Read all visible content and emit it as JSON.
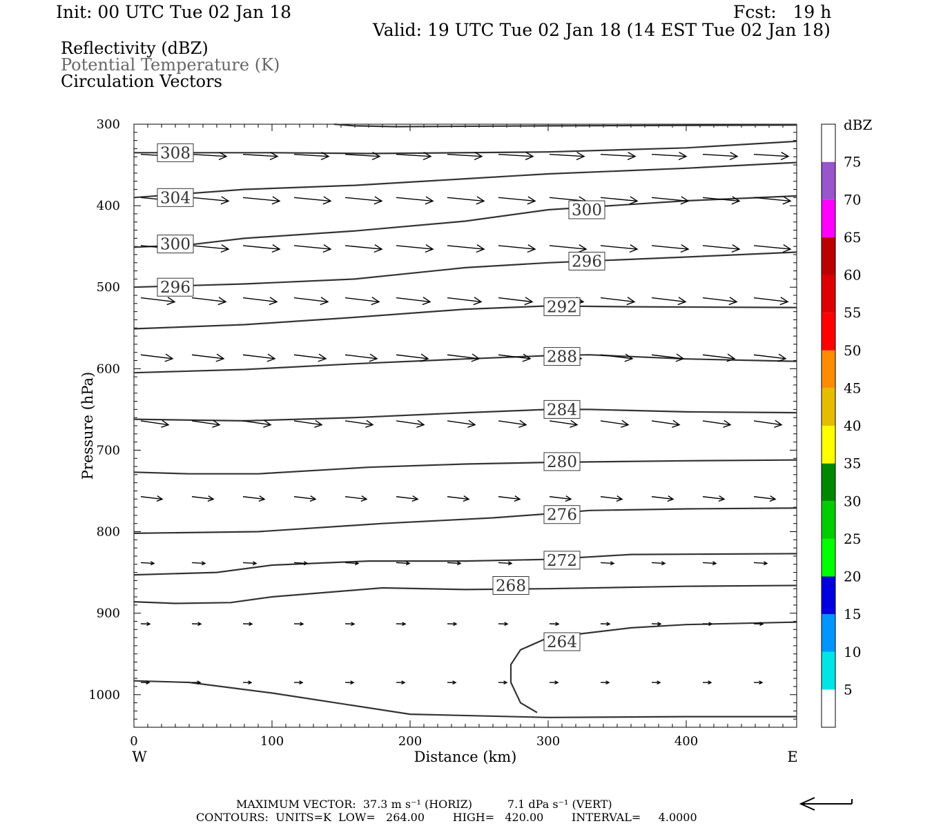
{
  "header": {
    "init": "Init: 00 UTC Tue 02 Jan 18",
    "fcst": "Fcst:   19 h",
    "valid": "Valid: 19 UTC Tue 02 Jan 18 (14 EST Tue 02 Jan 18)"
  },
  "fields": {
    "reflectivity": "Reflectivity (dBZ)",
    "theta": "Potential Temperature (K)",
    "vectors": "Circulation Vectors"
  },
  "footer": {
    "max_vector": "MAXIMUM VECTOR:  37.3 m s⁻¹ (HORIZ)          7.1 dPa s⁻¹ (VERT)",
    "contours": "CONTOURS:  UNITS=K  LOW=   264.00        HIGH=   420.00        INTERVAL=     4.0000"
  },
  "colorbar": {
    "unit": "dBZ",
    "labels": [
      "75",
      "70",
      "65",
      "60",
      "55",
      "50",
      "45",
      "40",
      "35",
      "30",
      "25",
      "20",
      "15",
      "10",
      "5"
    ],
    "colors": [
      "#ffffff",
      "#00e5e5",
      "#0096ff",
      "#0000e0",
      "#00ff00",
      "#00cc00",
      "#008800",
      "#ffff00",
      "#e6bc00",
      "#ff8c00",
      "#ff0000",
      "#dd0000",
      "#bb0000",
      "#ff00ff",
      "#9955cc",
      "#ffffff"
    ]
  },
  "chart_data": {
    "type": "contour-cross-section",
    "xlabel": "Distance (km)",
    "ylabel": "Pressure (hPa)",
    "xlim": [
      0,
      480
    ],
    "ylim": [
      1040,
      300
    ],
    "x_ticks": [
      "0",
      "100",
      "200",
      "300",
      "400"
    ],
    "y_ticks": [
      "300",
      "400",
      "500",
      "600",
      "700",
      "800",
      "900",
      "1000"
    ],
    "x_ticks_values": [
      0,
      100,
      200,
      300,
      400
    ],
    "y_ticks_values": [
      300,
      400,
      500,
      600,
      700,
      800,
      900,
      1000
    ],
    "left_label": "W",
    "right_label": "E",
    "contour_color": "#333333",
    "contours": [
      {
        "label": "308",
        "label_at": [
          18,
          335
        ],
        "points": [
          [
            0,
            335
          ],
          [
            100,
            335
          ],
          [
            170,
            336
          ],
          [
            300,
            334
          ],
          [
            400,
            329
          ],
          [
            480,
            321
          ]
        ]
      },
      {
        "label": "304",
        "label_at": [
          18,
          390
        ],
        "points": [
          [
            0,
            390
          ],
          [
            80,
            380
          ],
          [
            160,
            375
          ],
          [
            240,
            367
          ],
          [
            300,
            361
          ],
          [
            400,
            354
          ],
          [
            480,
            347
          ]
        ]
      },
      {
        "label": "300",
        "label_at": [
          18,
          447
        ],
        "points": [
          [
            0,
            451
          ],
          [
            40,
            448
          ],
          [
            80,
            440
          ],
          [
            160,
            431
          ],
          [
            240,
            419
          ],
          [
            300,
            405
          ],
          [
            400,
            394
          ],
          [
            480,
            388
          ]
        ]
      },
      {
        "label": "300",
        "label_at": [
          316,
          405
        ],
        "points": []
      },
      {
        "label": "296",
        "label_at": [
          18,
          500
        ],
        "points": [
          [
            0,
            500
          ],
          [
            80,
            496
          ],
          [
            160,
            490
          ],
          [
            240,
            476
          ],
          [
            300,
            470
          ],
          [
            400,
            463
          ],
          [
            480,
            457
          ]
        ]
      },
      {
        "label": "296",
        "label_at": [
          316,
          468
        ],
        "points": []
      },
      {
        "label": "292",
        "label_at": [
          298,
          524
        ],
        "points": [
          [
            0,
            551
          ],
          [
            80,
            546
          ],
          [
            160,
            537
          ],
          [
            240,
            527
          ],
          [
            300,
            523
          ],
          [
            360,
            524
          ],
          [
            480,
            525
          ]
        ]
      },
      {
        "label": "288",
        "label_at": [
          298,
          585
        ],
        "points": [
          [
            0,
            605
          ],
          [
            80,
            601
          ],
          [
            160,
            594
          ],
          [
            240,
            588
          ],
          [
            300,
            584
          ],
          [
            330,
            583
          ],
          [
            400,
            588
          ],
          [
            480,
            591
          ]
        ]
      },
      {
        "label": "284",
        "label_at": [
          298,
          650
        ],
        "points": [
          [
            0,
            662
          ],
          [
            80,
            664
          ],
          [
            160,
            660
          ],
          [
            240,
            654
          ],
          [
            300,
            650
          ],
          [
            330,
            650
          ],
          [
            400,
            653
          ],
          [
            480,
            654
          ]
        ]
      },
      {
        "label": "280",
        "label_at": [
          298,
          714
        ],
        "points": [
          [
            0,
            727
          ],
          [
            40,
            729
          ],
          [
            90,
            729
          ],
          [
            170,
            721
          ],
          [
            240,
            717
          ],
          [
            300,
            715
          ],
          [
            400,
            713
          ],
          [
            480,
            712
          ]
        ]
      },
      {
        "label": "276",
        "label_at": [
          298,
          779
        ],
        "points": [
          [
            0,
            802
          ],
          [
            90,
            800
          ],
          [
            180,
            790
          ],
          [
            260,
            783
          ],
          [
            300,
            778
          ],
          [
            330,
            774
          ],
          [
            400,
            772
          ],
          [
            480,
            771
          ]
        ]
      },
      {
        "label": "272",
        "label_at": [
          298,
          835
        ],
        "points": [
          [
            0,
            853
          ],
          [
            60,
            850
          ],
          [
            100,
            841
          ],
          [
            170,
            836
          ],
          [
            240,
            836
          ],
          [
            300,
            834
          ],
          [
            360,
            828
          ],
          [
            480,
            827
          ]
        ]
      },
      {
        "label": "268",
        "label_at": [
          261,
          866
        ],
        "points": [
          [
            0,
            886
          ],
          [
            30,
            888
          ],
          [
            70,
            887
          ],
          [
            100,
            880
          ],
          [
            180,
            869
          ],
          [
            240,
            871
          ],
          [
            300,
            870
          ],
          [
            400,
            867
          ],
          [
            480,
            866
          ]
        ]
      },
      {
        "label": "264",
        "label_at": [
          298,
          935
        ],
        "points": [
          [
            480,
            911
          ],
          [
            400,
            914
          ],
          [
            360,
            918
          ],
          [
            300,
            930
          ],
          [
            280,
            945
          ],
          [
            273,
            963
          ],
          [
            273,
            985
          ],
          [
            280,
            1010
          ],
          [
            292,
            1022
          ]
        ]
      },
      {
        "label": "",
        "label_at": null,
        "points": [
          [
            0,
            983
          ],
          [
            40,
            985
          ],
          [
            100,
            998
          ],
          [
            200,
            1024
          ],
          [
            300,
            1028
          ],
          [
            400,
            1027
          ],
          [
            480,
            1027
          ]
        ]
      },
      {
        "label": "",
        "label_at": null,
        "points": [
          [
            145,
            300
          ],
          [
            160,
            302
          ],
          [
            190,
            303
          ],
          [
            300,
            302
          ],
          [
            480,
            301
          ]
        ]
      }
    ],
    "vector_rows": [
      {
        "p": 337,
        "x0": 5,
        "dx": 37,
        "n": 13,
        "len": 50,
        "dp": 5
      },
      {
        "p": 390,
        "x0": 5,
        "dx": 37,
        "n": 13,
        "len": 53,
        "dp": 8
      },
      {
        "p": 449,
        "x0": 5,
        "dx": 37,
        "n": 13,
        "len": 53,
        "dp": 8
      },
      {
        "p": 513,
        "x0": 5,
        "dx": 37,
        "n": 13,
        "len": 49,
        "dp": 10
      },
      {
        "p": 583,
        "x0": 5,
        "dx": 37,
        "n": 13,
        "len": 46,
        "dp": 10
      },
      {
        "p": 664,
        "x0": 5,
        "dx": 37,
        "n": 13,
        "len": 40,
        "dp": 12
      },
      {
        "p": 757,
        "x0": 5,
        "dx": 37,
        "n": 13,
        "len": 31,
        "dp": 10
      },
      {
        "p": 838,
        "x0": 5,
        "dx": 37,
        "n": 13,
        "len": 19,
        "dp": 5
      },
      {
        "p": 913,
        "x0": 5,
        "dx": 37,
        "n": 13,
        "len": 13,
        "dp": 2
      },
      {
        "p": 985,
        "x0": 5,
        "dx": 37,
        "n": 13,
        "len": 12,
        "dp": 1
      }
    ]
  }
}
